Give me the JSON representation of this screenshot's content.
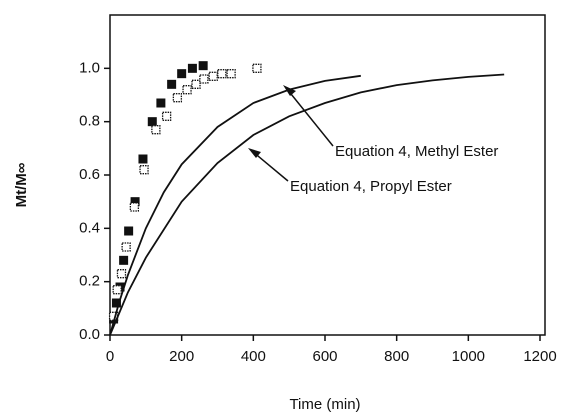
{
  "chart_data": {
    "type": "scatter",
    "xlabel": "Time (min)",
    "ylabel": "Mt/M∞",
    "xlim": [
      0,
      1200
    ],
    "ylim": [
      0,
      1.2
    ],
    "xticks": [
      0,
      200,
      400,
      600,
      800,
      1000,
      1200
    ],
    "yticks": [
      {
        "value": 0,
        "label": "0.0"
      },
      0.2,
      0.4,
      0.6,
      0.8,
      {
        "value": 1,
        "label": "1.0"
      }
    ],
    "series": [
      {
        "kind": "filled-square",
        "color": "#111111",
        "x": [
          10,
          18,
          28,
          38,
          52,
          70,
          92,
          118,
          142,
          172,
          200,
          230,
          260
        ],
        "values": [
          0.06,
          0.12,
          0.18,
          0.28,
          0.39,
          0.5,
          0.66,
          0.8,
          0.87,
          0.94,
          0.98,
          1.0,
          1.01
        ]
      },
      {
        "kind": "open-square",
        "color": "#111111",
        "x": [
          10,
          20,
          32,
          45,
          68,
          95,
          128,
          158,
          188,
          215,
          240,
          262,
          288,
          312,
          338,
          410
        ],
        "values": [
          0.07,
          0.17,
          0.23,
          0.33,
          0.48,
          0.62,
          0.77,
          0.82,
          0.89,
          0.92,
          0.94,
          0.96,
          0.97,
          0.98,
          0.98,
          1.0
        ]
      },
      {
        "kind": "line",
        "color": "#111111",
        "x": [
          0,
          25,
          50,
          100,
          150,
          200,
          300,
          400,
          500,
          600,
          700
        ],
        "values": [
          0,
          0.12,
          0.225,
          0.4,
          0.535,
          0.64,
          0.78,
          0.87,
          0.92,
          0.953,
          0.972
        ]
      },
      {
        "kind": "line",
        "color": "#111111",
        "x": [
          0,
          50,
          100,
          200,
          300,
          400,
          500,
          600,
          700,
          800,
          900,
          1000,
          1100
        ],
        "values": [
          0,
          0.16,
          0.29,
          0.5,
          0.645,
          0.75,
          0.82,
          0.87,
          0.91,
          0.937,
          0.955,
          0.968,
          0.977
        ]
      }
    ],
    "annotations": [
      "Equation 4, Methyl Ester",
      "Equation 4, Propyl Ester"
    ]
  }
}
